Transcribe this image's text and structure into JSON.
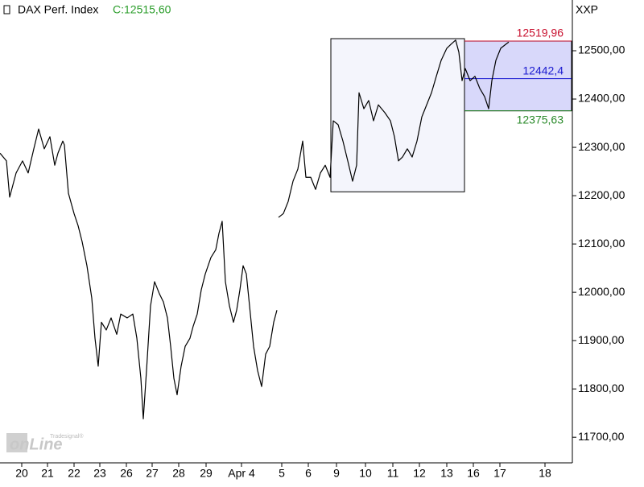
{
  "chart_data": {
    "type": "line",
    "title": "DAX Perf. Index",
    "last_label": "C:12515,60",
    "last_label_color": "#2a9d2a",
    "axis_title": "XXP",
    "watermark": {
      "brand": "Tradesignal®",
      "text": "onLine"
    },
    "xlim": [
      0,
      21.3
    ],
    "ylim": [
      11647,
      12605
    ],
    "xticks": [
      {
        "value": 0.81,
        "label": "20"
      },
      {
        "value": 1.77,
        "label": "21"
      },
      {
        "value": 2.76,
        "label": "22"
      },
      {
        "value": 3.72,
        "label": "23"
      },
      {
        "value": 4.71,
        "label": "26"
      },
      {
        "value": 5.67,
        "label": "27"
      },
      {
        "value": 6.66,
        "label": "28"
      },
      {
        "value": 7.68,
        "label": "29"
      },
      {
        "value": 9.0,
        "label": "Apr 4"
      },
      {
        "value": 10.5,
        "label": "5"
      },
      {
        "value": 11.49,
        "label": "6"
      },
      {
        "value": 12.54,
        "label": "9"
      },
      {
        "value": 13.62,
        "label": "10"
      },
      {
        "value": 14.64,
        "label": "11"
      },
      {
        "value": 15.63,
        "label": "12"
      },
      {
        "value": 16.65,
        "label": "13"
      },
      {
        "value": 17.64,
        "label": "16"
      },
      {
        "value": 18.63,
        "label": "17"
      },
      {
        "value": 20.31,
        "label": "18"
      }
    ],
    "yticks": [
      {
        "value": 11700,
        "label": "11700,00"
      },
      {
        "value": 11800,
        "label": "11800,00"
      },
      {
        "value": 11900,
        "label": "11900,00"
      },
      {
        "value": 12000,
        "label": "12000,00"
      },
      {
        "value": 12100,
        "label": "12100,00"
      },
      {
        "value": 12200,
        "label": "12200,00"
      },
      {
        "value": 12300,
        "label": "12300,00"
      },
      {
        "value": 12400,
        "label": "12400,00"
      },
      {
        "value": 12500,
        "label": "12500,00"
      }
    ],
    "grid": false,
    "x": [
      0,
      0.24,
      0.36,
      0.6,
      0.84,
      1.05,
      1.26,
      1.44,
      1.65,
      1.86,
      2.04,
      2.16,
      2.34,
      2.4,
      2.55,
      2.76,
      2.91,
      3.06,
      3.24,
      3.42,
      3.54,
      3.66,
      3.78,
      3.96,
      4.14,
      4.35,
      4.5,
      4.74,
      4.95,
      5.1,
      5.25,
      5.34,
      5.46,
      5.61,
      5.76,
      5.94,
      6.09,
      6.24,
      6.36,
      6.48,
      6.6,
      6.75,
      6.9,
      7.08,
      7.2,
      7.35,
      7.5,
      7.65,
      7.86,
      8.04,
      8.16,
      8.28,
      8.4,
      8.55,
      8.7,
      8.82,
      8.94,
      9.06,
      9.18,
      9.3,
      9.45,
      9.6,
      9.75,
      9.9,
      10.05,
      10.2,
      10.32,
      10.35,
      10.38,
      10.56,
      10.74,
      10.92,
      11.1,
      11.28,
      11.4,
      11.58,
      11.76,
      11.94,
      12.12,
      12.3,
      12.42,
      12.6,
      12.78,
      12.96,
      13.14,
      13.29,
      13.38,
      13.56,
      13.74,
      13.92,
      14.1,
      14.34,
      14.55,
      14.7,
      14.85,
      15.0,
      15.18,
      15.36,
      15.54,
      15.72,
      15.9,
      16.08,
      16.26,
      16.44,
      16.65,
      16.8,
      16.98,
      17.1,
      17.22,
      17.34,
      17.52,
      17.7,
      17.88,
      18.06,
      18.21,
      18.33,
      18.48,
      18.66,
      18.84,
      18.96
    ],
    "series": [
      {
        "name": "DAX Perf. Index",
        "color": "#000000",
        "values": [
          12288,
          12272,
          12197,
          12247,
          12272,
          12247,
          12297,
          12338,
          12297,
          12322,
          12263,
          12288,
          12313,
          12305,
          12205,
          12163,
          12138,
          12105,
          12055,
          11988,
          11905,
          11847,
          11938,
          11922,
          11947,
          11913,
          11955,
          11947,
          11955,
          11905,
          11822,
          11738,
          11838,
          11972,
          12022,
          11997,
          11980,
          11947,
          11888,
          11822,
          11788,
          11847,
          11888,
          11905,
          11930,
          11955,
          12005,
          12038,
          12072,
          12088,
          12122,
          12147,
          12022,
          11972,
          11938,
          11963,
          12005,
          12055,
          12038,
          11972,
          11888,
          11838,
          11805,
          11872,
          11888,
          11938,
          11963,
          null,
          12155,
          12163,
          12188,
          12230,
          12255,
          12313,
          12238,
          12238,
          12213,
          12247,
          12263,
          12238,
          12355,
          12347,
          12313,
          12272,
          12230,
          12263,
          12413,
          12380,
          12397,
          12355,
          12388,
          12372,
          12355,
          12322,
          12272,
          12280,
          12297,
          12280,
          12313,
          12363,
          12388,
          12413,
          12447,
          12480,
          12505,
          12513,
          12522,
          12497,
          12438,
          12463,
          12438,
          12447,
          12422,
          12405,
          12380,
          12438,
          12480,
          12505,
          12513,
          12518
        ]
      }
    ],
    "zones": [
      {
        "x": [
          12.33,
          17.31
        ],
        "y": [
          12208,
          12525
        ],
        "color": "#f4f5fc"
      },
      {
        "x": [
          17.31,
          21.3
        ],
        "y": [
          12375.63,
          12519.96
        ],
        "color": "#d8d8fa"
      }
    ],
    "levels": [
      {
        "value": 12519.96,
        "label": "12519,96",
        "color": "#c8102e",
        "x": [
          17.31,
          21.3
        ]
      },
      {
        "value": 12442.4,
        "label": "12442,4",
        "color": "#1a1ad0",
        "x": [
          17.31,
          21.3
        ]
      },
      {
        "value": 12375.63,
        "label": "12375,63",
        "color": "#2a8a2a",
        "x": [
          17.31,
          21.3
        ]
      }
    ]
  }
}
